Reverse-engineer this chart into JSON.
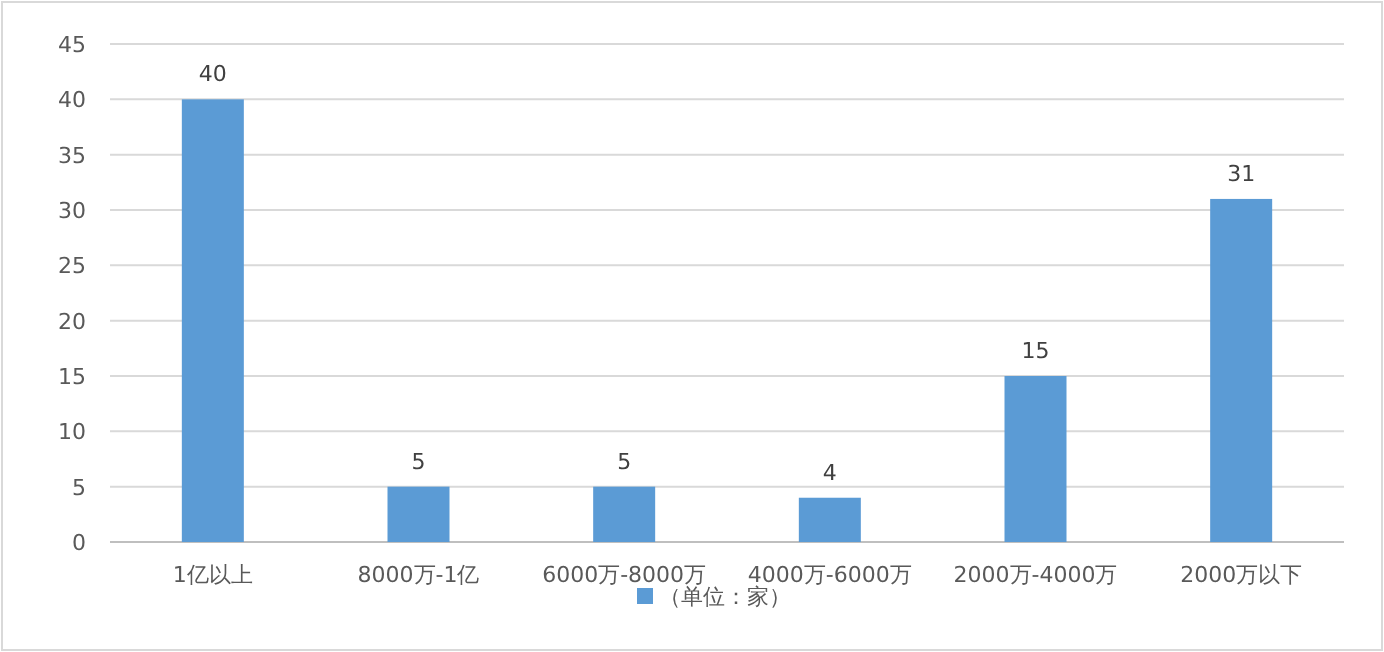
{
  "chart_data": {
    "type": "bar",
    "categories": [
      "1亿以上",
      "8000万-1亿",
      "6000万-8000万",
      "4000万-6000万",
      "2000万-4000万",
      "2000万以下"
    ],
    "series": [
      {
        "name": "（单位：家）",
        "color": "#5b9bd5",
        "values": [
          40,
          5,
          5,
          4,
          15,
          31
        ]
      }
    ],
    "ylim": [
      0,
      45
    ],
    "yticks": [
      0,
      5,
      10,
      15,
      20,
      25,
      30,
      35,
      40,
      45
    ],
    "grid": "y",
    "legend": "bottom",
    "data_labels": true
  }
}
